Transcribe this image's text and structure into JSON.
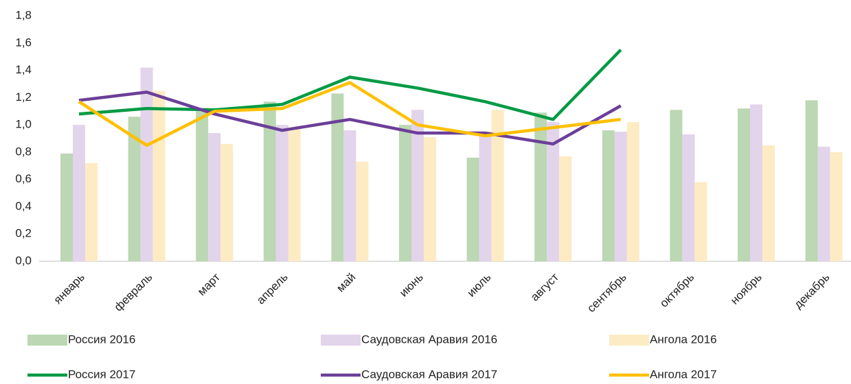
{
  "chart_data": {
    "type": "bar",
    "categories": [
      "январь",
      "февраль",
      "март",
      "апрель",
      "май",
      "июнь",
      "июль",
      "август",
      "сентябрь",
      "октябрь",
      "ноябрь",
      "декабрь"
    ],
    "series": [
      {
        "name": "Россия 2016",
        "type": "bar",
        "color": "#bcd7b3",
        "values": [
          0.79,
          1.06,
          1.1,
          1.17,
          1.23,
          1.0,
          0.76,
          1.09,
          0.96,
          1.11,
          1.12,
          1.18
        ]
      },
      {
        "name": "Саудовская Аравия 2016",
        "type": "bar",
        "color": "#e2d4ea",
        "values": [
          1.0,
          1.42,
          0.94,
          1.0,
          0.96,
          1.11,
          0.95,
          1.02,
          0.95,
          0.93,
          1.15,
          0.84
        ]
      },
      {
        "name": "Ангола 2016",
        "type": "bar",
        "color": "#fdebc4",
        "values": [
          0.72,
          1.25,
          0.86,
          0.98,
          0.73,
          0.91,
          1.11,
          0.77,
          1.02,
          0.58,
          0.85,
          0.8
        ]
      },
      {
        "name": "Россия 2017",
        "type": "line",
        "color": "#009a44",
        "values": [
          1.08,
          1.12,
          1.11,
          1.15,
          1.35,
          1.27,
          1.17,
          1.04,
          1.55,
          null,
          null,
          null
        ]
      },
      {
        "name": "Саудовская Аравия 2017",
        "type": "line",
        "color": "#6b3f98",
        "values": [
          1.18,
          1.24,
          1.08,
          0.96,
          1.04,
          0.94,
          0.94,
          0.86,
          1.14,
          null,
          null,
          null
        ]
      },
      {
        "name": "Ангола 2017",
        "type": "line",
        "color": "#ffc000",
        "values": [
          1.17,
          0.85,
          1.1,
          1.12,
          1.31,
          1.0,
          0.92,
          0.98,
          1.04,
          null,
          null,
          null
        ]
      }
    ],
    "ylim": [
      0,
      1.8
    ],
    "yticks": [
      {
        "value": 0,
        "label": "0,0"
      },
      {
        "value": 0.2,
        "label": "0,2"
      },
      {
        "value": 0.4,
        "label": "0,4"
      },
      {
        "value": 0.6,
        "label": "0,6"
      },
      {
        "value": 0.8,
        "label": "0,8"
      },
      {
        "value": 1.0,
        "label": "1,0"
      },
      {
        "value": 1.2,
        "label": "1,2"
      },
      {
        "value": 1.4,
        "label": "1,4"
      },
      {
        "value": 1.6,
        "label": "1,6"
      },
      {
        "value": 1.8,
        "label": "1,8"
      }
    ],
    "grid": false
  }
}
